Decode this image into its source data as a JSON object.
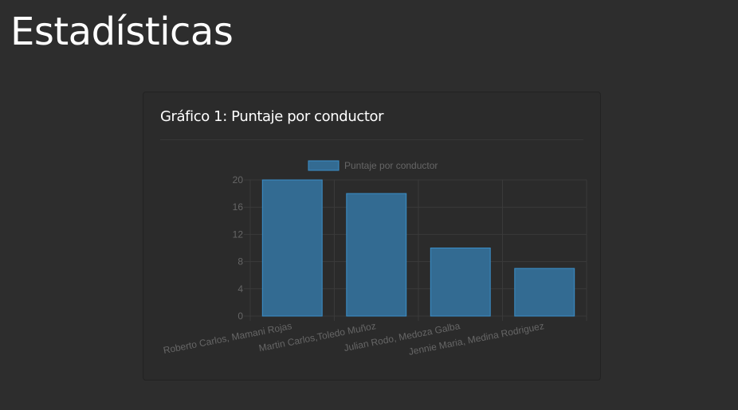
{
  "page": {
    "title": "Estadísticas"
  },
  "card": {
    "title": "Gráfico 1: Puntaje por conductor"
  },
  "colors": {
    "background": "#2d2d2d",
    "bar_fill": "#336b92",
    "bar_border": "#3b8fc9",
    "grid": "#3a3a3a",
    "text_muted": "#666666"
  },
  "chart_data": {
    "type": "bar",
    "categories": [
      "Roberto Carlos, Mamani Rojas",
      "Martin Carlos,Toledo Muñoz",
      "Julian Rodo, Medoza Galba",
      "Jennie Maria, Medina Rodriguez"
    ],
    "series": [
      {
        "name": "Puntaje por conductor",
        "values": [
          20,
          18,
          10,
          7
        ]
      }
    ],
    "ylim": [
      0,
      20
    ],
    "yticks": [
      0,
      4,
      8,
      12,
      16,
      20
    ],
    "legend_position": "top-center",
    "grid": true
  }
}
